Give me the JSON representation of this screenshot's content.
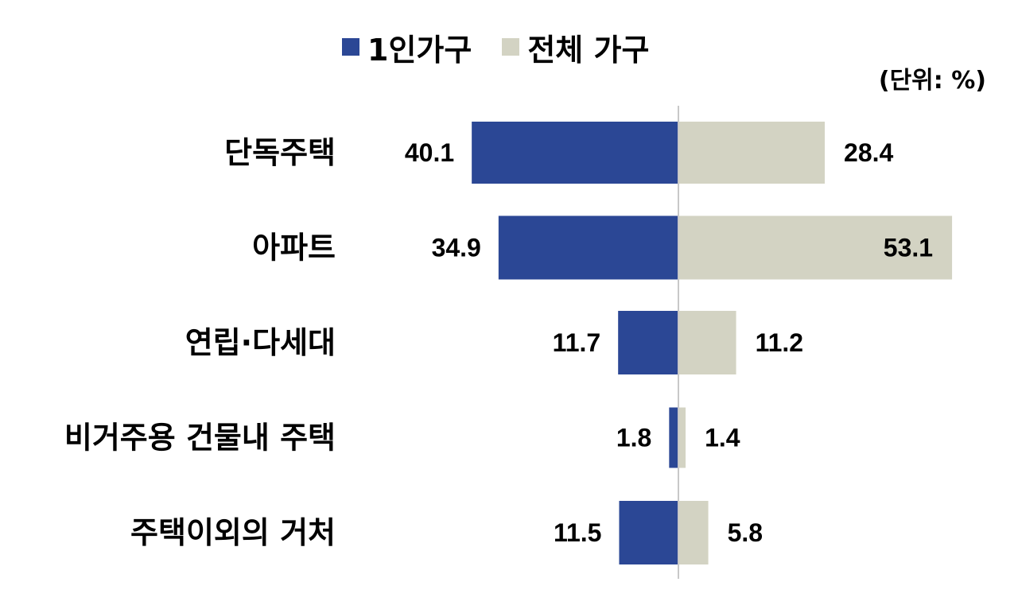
{
  "chart_data": {
    "type": "bar",
    "orientation": "horizontal-diverging",
    "unit": "(단위: %)",
    "categories": [
      "단독주택",
      "아파트",
      "연립·다세대",
      "비거주용 건물내 주택",
      "주택이외의 거처"
    ],
    "series": [
      {
        "name": "1인가구",
        "color": "#2b4795",
        "values": [
          40.1,
          34.9,
          11.7,
          1.8,
          11.5
        ]
      },
      {
        "name": "전체 가구",
        "color": "#d3d3c3",
        "values": [
          28.4,
          53.1,
          11.2,
          1.4,
          5.8
        ]
      }
    ],
    "legend_position": "top",
    "grid": false
  }
}
